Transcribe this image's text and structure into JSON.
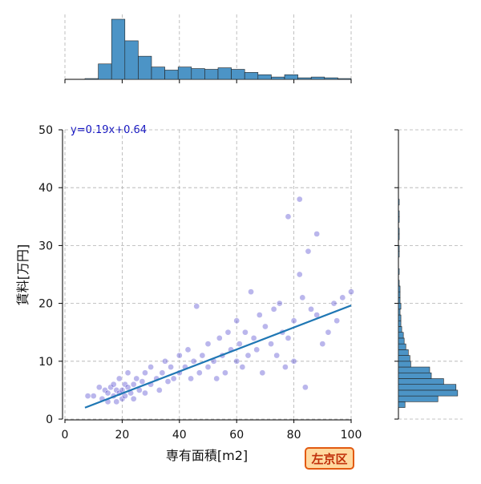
{
  "chart_data": [
    {
      "type": "scatter",
      "xlabel": "専有面積[m2]",
      "ylabel": "賃料[万円]",
      "annotation": "y=0.19x+0.64",
      "tag": "左京区",
      "x": [
        8,
        10,
        12,
        13,
        14,
        15,
        15,
        16,
        17,
        17,
        18,
        18,
        19,
        19,
        20,
        20,
        21,
        21,
        22,
        22,
        23,
        24,
        24,
        25,
        26,
        27,
        28,
        28,
        30,
        30,
        32,
        33,
        34,
        35,
        36,
        37,
        38,
        40,
        40,
        42,
        43,
        44,
        45,
        46,
        47,
        48,
        50,
        50,
        52,
        53,
        54,
        55,
        56,
        57,
        58,
        60,
        60,
        61,
        62,
        63,
        64,
        65,
        66,
        67,
        68,
        69,
        70,
        72,
        73,
        74,
        75,
        76,
        77,
        78,
        78,
        80,
        80,
        82,
        82,
        83,
        84,
        85,
        86,
        88,
        88,
        90,
        92,
        94,
        95,
        97,
        100
      ],
      "y": [
        4,
        4,
        5.5,
        3.5,
        5,
        4.5,
        3,
        5.5,
        4,
        6,
        3,
        5,
        4.5,
        7,
        5,
        3.5,
        6,
        4,
        5.5,
        8,
        4.5,
        6,
        3.5,
        7,
        5,
        6.5,
        4.5,
        8,
        6,
        9,
        7,
        5,
        8,
        10,
        6.5,
        9,
        7,
        11,
        8,
        9,
        12,
        7,
        10,
        19.5,
        8,
        11,
        9,
        13,
        10,
        7,
        14,
        11,
        8,
        15,
        12,
        10,
        17,
        13,
        9,
        15,
        11,
        22,
        14,
        12,
        18,
        8,
        16,
        13,
        19,
        11,
        20,
        15,
        9,
        35,
        14,
        17,
        10,
        38,
        25,
        21,
        5.5,
        29,
        19,
        32,
        18,
        13,
        15,
        20,
        17,
        21,
        22
      ],
      "color": "#3a2fc8",
      "regression": {
        "x": [
          7,
          100
        ],
        "y": [
          1.97,
          19.64
        ],
        "color": "#1f77b4"
      },
      "xlim": [
        0,
        100
      ],
      "ylim": [
        0,
        50
      ],
      "xticks": [
        0,
        20,
        40,
        60,
        80,
        100
      ],
      "yticks": [
        0,
        10,
        20,
        30,
        40,
        50
      ],
      "grid": true
    },
    {
      "type": "histogram",
      "orientation": "vertical",
      "color": "#4c94c6",
      "bins": [
        7,
        11.65,
        16.3,
        20.95,
        25.6,
        30.25,
        34.9,
        39.55,
        44.2,
        48.85,
        53.5,
        58.15,
        62.8,
        67.45,
        72.1,
        76.75,
        81.4,
        86.05,
        90.7,
        95.35,
        100
      ],
      "counts": [
        1,
        20,
        78,
        50,
        30,
        16,
        12,
        16,
        14,
        13,
        15,
        13,
        9,
        6,
        3,
        6,
        2,
        3,
        2,
        1
      ],
      "xlim": [
        0,
        100
      ],
      "ylim": [
        0,
        78
      ]
    },
    {
      "type": "histogram",
      "orientation": "horizontal",
      "color": "#4c94c6",
      "bins": [
        2,
        3,
        4,
        5,
        6,
        7,
        8,
        9,
        10,
        11,
        12,
        13,
        14,
        15,
        16,
        17,
        18,
        19,
        20,
        21,
        22,
        23,
        24,
        25,
        26,
        27,
        28,
        29,
        30,
        31,
        32,
        33,
        34,
        35,
        36,
        37,
        38
      ],
      "counts": [
        8,
        48,
        72,
        70,
        55,
        40,
        38,
        15,
        14,
        12,
        9,
        7,
        6,
        4,
        3,
        3,
        2,
        3,
        2,
        2,
        2,
        1,
        0,
        1,
        0,
        0,
        1,
        1,
        0,
        1,
        1,
        0,
        1,
        1,
        0,
        1
      ],
      "ylim": [
        0,
        50
      ],
      "xlim": [
        0,
        78
      ]
    }
  ]
}
